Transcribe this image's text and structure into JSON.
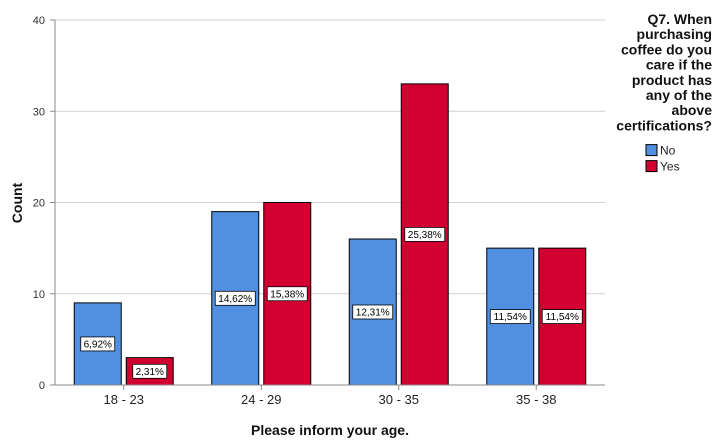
{
  "chart_data": {
    "type": "bar",
    "categories": [
      "18 - 23",
      "24 - 29",
      "30 - 35",
      "35 - 38"
    ],
    "series": [
      {
        "name": "No",
        "color": "#5190E0",
        "values": [
          9,
          19,
          16,
          15
        ],
        "labels": [
          "6,92%",
          "14,62%",
          "12,31%",
          "11,54%"
        ]
      },
      {
        "name": "Yes",
        "color": "#D20030",
        "values": [
          3,
          20,
          33,
          15
        ],
        "labels": [
          "2,31%",
          "15,38%",
          "25,38%",
          "11,54%"
        ]
      }
    ],
    "xlabel": "Please inform your age.",
    "ylabel": "Count",
    "ylim": [
      0,
      40
    ],
    "yticks": [
      0,
      10,
      20,
      30,
      40
    ],
    "grid": true,
    "legend": {
      "title_lines": [
        "Q7. When",
        "purchasing",
        "coffee do you",
        "care if the",
        "product has",
        "any of the",
        "above",
        "certifications?"
      ],
      "placement": "right"
    }
  }
}
